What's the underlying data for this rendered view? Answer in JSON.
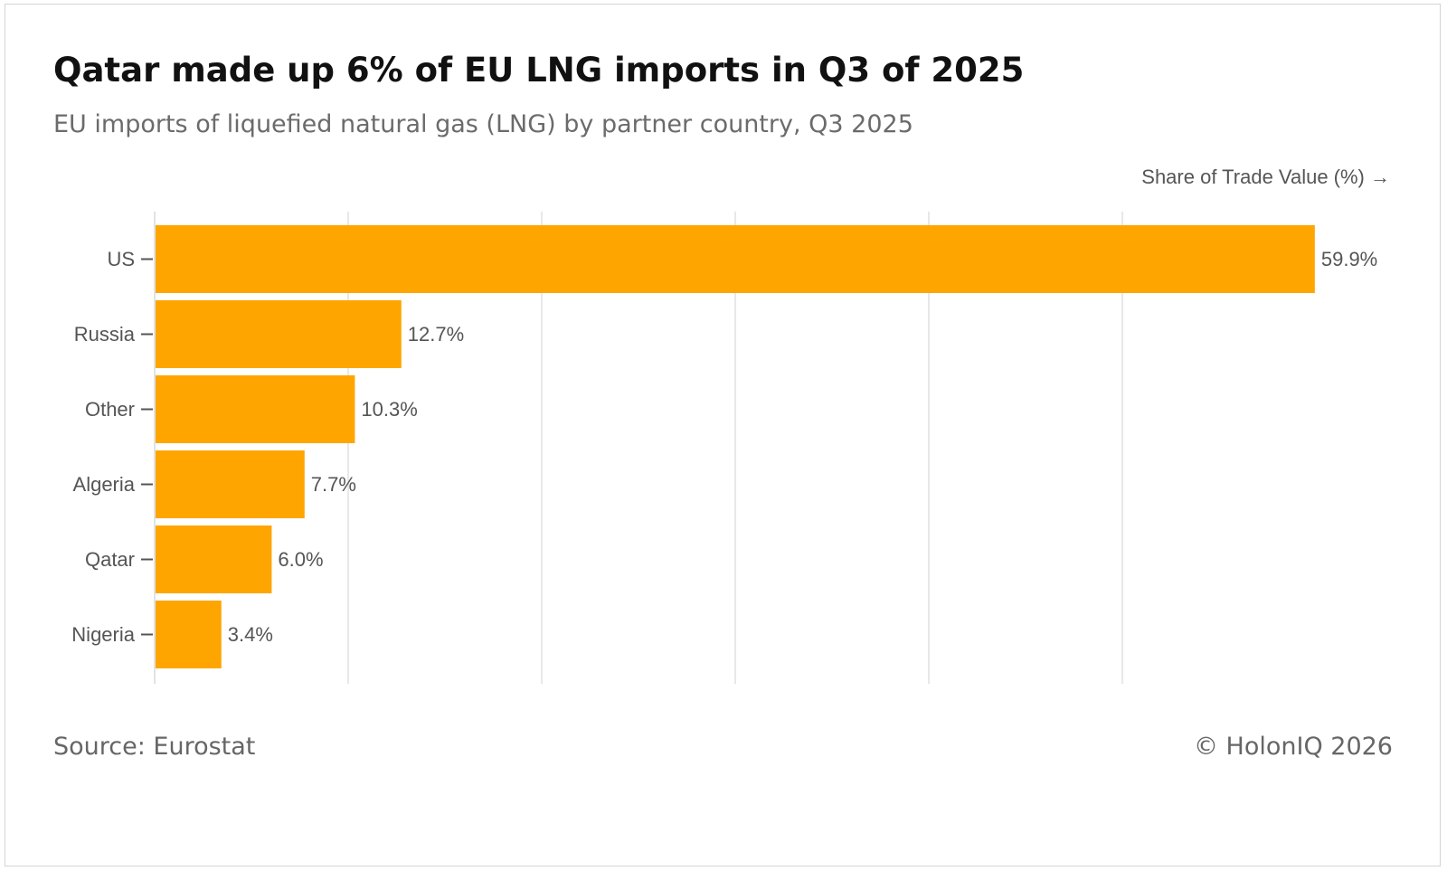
{
  "chart_data": {
    "type": "bar",
    "orientation": "horizontal",
    "title": "Qatar made up 6% of EU LNG imports in Q3 of 2025",
    "subtitle": "EU imports of liquefied natural gas (LNG) by partner country, Q3 2025",
    "xlabel": "Share of Trade Value (%) →",
    "ylabel": "",
    "categories": [
      "US",
      "Russia",
      "Other",
      "Algeria",
      "Qatar",
      "Nigeria"
    ],
    "values": [
      59.9,
      12.7,
      10.3,
      7.7,
      6.0,
      3.4
    ],
    "data_labels": [
      "59.9%",
      "12.7%",
      "10.3%",
      "7.7%",
      "6.0%",
      "3.4%"
    ],
    "xlim": [
      0,
      65
    ],
    "gridlines": [
      10,
      20,
      30,
      40,
      50
    ],
    "grid": true,
    "bar_color": "#FFA500",
    "grid_color": "#e0e0e0",
    "source": "Source: Eurostat",
    "credit": "© HolonIQ 2026"
  }
}
